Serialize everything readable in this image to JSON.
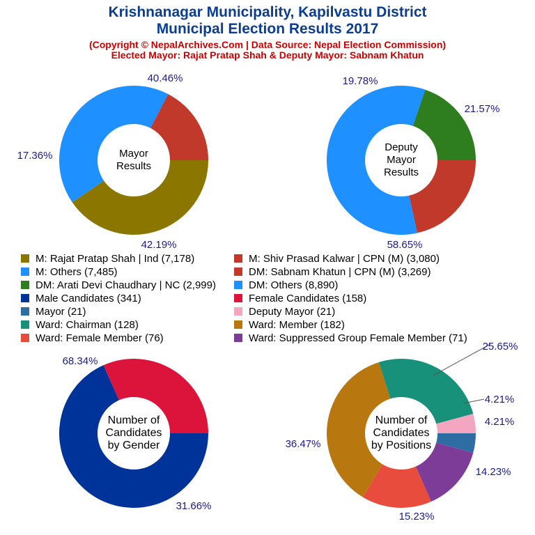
{
  "header": {
    "title_line1": "Krishnanagar Municipality, Kapilvastu District",
    "title_line2": "Municipal Election Results 2017",
    "subtitle_line1": "(Copyright © NepalArchives.Com | Data Source: Nepal Election Commission)",
    "subtitle_line2": "Elected Mayor: Rajat Pratap Shah & Deputy Mayor: Sabnam Khatun"
  },
  "legend": [
    {
      "label": "M: Rajat Pratap Shah | Ind (7,178)",
      "color": "#8b7700"
    },
    {
      "label": "M: Shiv Prasad Kalwar | CPN (M) (3,080)",
      "color": "#c0392b"
    },
    {
      "label": "M: Others (7,485)",
      "color": "#1e90ff"
    },
    {
      "label": "DM: Sabnam Khatun | CPN (M) (3,269)",
      "color": "#c0392b"
    },
    {
      "label": "DM: Arati Devi Chaudhary | NC (2,999)",
      "color": "#2e7d1e"
    },
    {
      "label": "DM: Others (8,890)",
      "color": "#1e90ff"
    },
    {
      "label": "Male Candidates (341)",
      "color": "#003399"
    },
    {
      "label": "Female Candidates (158)",
      "color": "#dc143c"
    },
    {
      "label": "Mayor (21)",
      "color": "#2e6da4"
    },
    {
      "label": "Deputy Mayor (21)",
      "color": "#f4a6c0"
    },
    {
      "label": "Ward: Chairman (128)",
      "color": "#17917a"
    },
    {
      "label": "Ward: Member (182)",
      "color": "#b8770f"
    },
    {
      "label": "Ward: Female Member (76)",
      "color": "#e74c3c"
    },
    {
      "label": "Ward: Suppressed Group Female Member (71)",
      "color": "#7d3c98"
    }
  ],
  "chart_data": [
    {
      "type": "pie",
      "center_label": [
        "Mayor",
        "Results"
      ],
      "slices": [
        {
          "name": "M: Rajat Pratap Shah | Ind",
          "value": 7178,
          "pct_label": "40.46%",
          "color": "#8b7700"
        },
        {
          "name": "M: Others",
          "value": 7485,
          "pct_label": "42.19%",
          "color": "#1e90ff"
        },
        {
          "name": "M: Shiv Prasad Kalwar | CPN (M)",
          "value": 3080,
          "pct_label": "17.36%",
          "color": "#c0392b"
        }
      ]
    },
    {
      "type": "pie",
      "center_label": [
        "Deputy",
        "Mayor",
        "Results"
      ],
      "slices": [
        {
          "name": "DM: Sabnam Khatun | CPN (M)",
          "value": 3269,
          "pct_label": "21.57%",
          "color": "#c0392b"
        },
        {
          "name": "DM: Others",
          "value": 8890,
          "pct_label": "58.65%",
          "color": "#1e90ff"
        },
        {
          "name": "DM: Arati Devi Chaudhary | NC",
          "value": 2999,
          "pct_label": "19.78%",
          "color": "#2e7d1e"
        }
      ]
    },
    {
      "type": "pie",
      "center_label": [
        "Number of",
        "Candidates",
        "by Gender"
      ],
      "slices": [
        {
          "name": "Male Candidates",
          "value": 341,
          "pct_label": "68.34%",
          "color": "#003399"
        },
        {
          "name": "Female Candidates",
          "value": 158,
          "pct_label": "31.66%",
          "color": "#dc143c"
        }
      ]
    },
    {
      "type": "pie",
      "center_label": [
        "Number of",
        "Candidates",
        "by Positions"
      ],
      "slices": [
        {
          "name": "Mayor",
          "value": 21,
          "pct_label": "4.21%",
          "color": "#2e6da4"
        },
        {
          "name": "Ward: Suppressed Group Female Member",
          "value": 71,
          "pct_label": "14.23%",
          "color": "#7d3c98"
        },
        {
          "name": "Ward: Female Member",
          "value": 76,
          "pct_label": "15.23%",
          "color": "#e74c3c"
        },
        {
          "name": "Ward: Member",
          "value": 182,
          "pct_label": "36.47%",
          "color": "#b8770f"
        },
        {
          "name": "Ward: Chairman",
          "value": 128,
          "pct_label": "25.65%",
          "color": "#17917a"
        },
        {
          "name": "Deputy Mayor",
          "value": 21,
          "pct_label": "4.21%",
          "color": "#f4a6c0"
        }
      ]
    }
  ]
}
